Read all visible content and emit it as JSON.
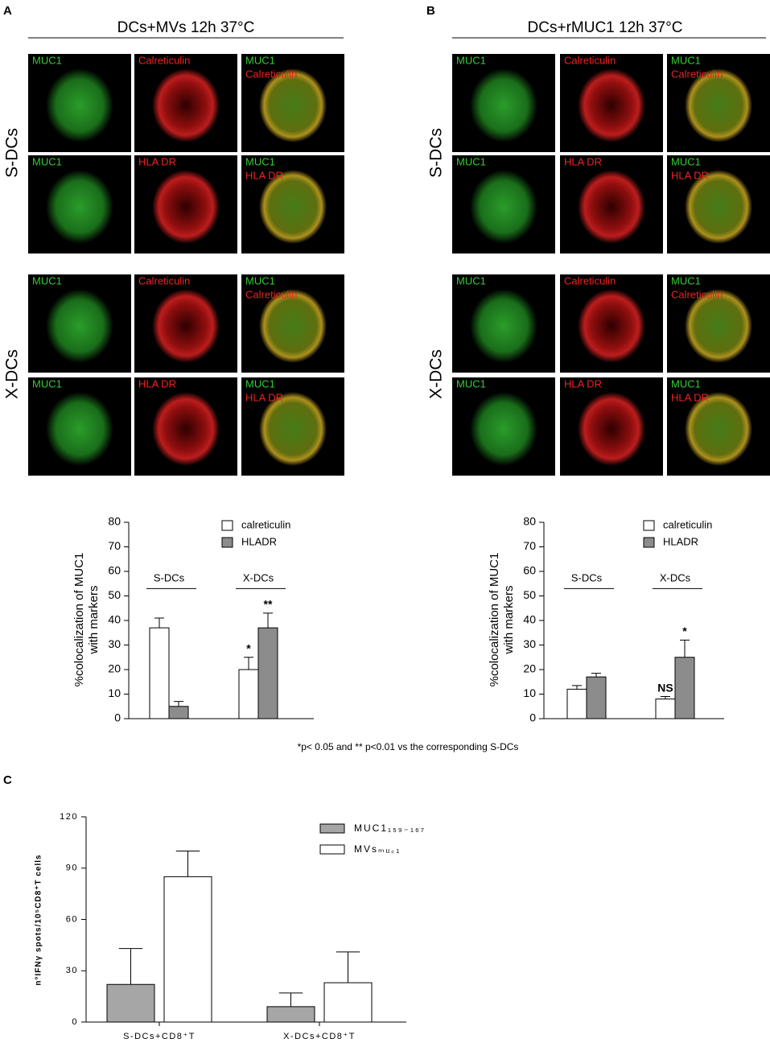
{
  "panels": [
    {
      "letter": "A",
      "title": "DCs+MVs 12h 37°C"
    },
    {
      "letter": "B",
      "title": "DCs+rMUC1 12h 37°C"
    }
  ],
  "row_groups": [
    "S-DCs",
    "X-DCs"
  ],
  "image_labels": {
    "muc1": "MUC1",
    "calreticulin": "Calreticulin",
    "hladr": "HLA DR"
  },
  "footnote": "*p< 0.05 and ** p<0.01 vs the corresponding S-DCs",
  "panel_c_letter": "C",
  "chart_data": [
    {
      "type": "bar",
      "y_label": [
        "%colocalization of MUC1",
        "with markers"
      ],
      "categories": [
        "S-DCs",
        "X-DCs"
      ],
      "series": [
        {
          "name": "calreticulin",
          "color": "#ffffff",
          "values": [
            37,
            20
          ],
          "errors": [
            4,
            5
          ],
          "annotations": [
            null,
            "*"
          ]
        },
        {
          "name": "HLADR",
          "color": "#8c8c8c",
          "values": [
            5,
            37
          ],
          "errors": [
            2,
            6
          ],
          "annotations": [
            null,
            "**"
          ]
        }
      ],
      "ylim": [
        0,
        80
      ],
      "yticks": [
        0,
        10,
        20,
        30,
        40,
        50,
        60,
        70,
        80
      ]
    },
    {
      "type": "bar",
      "y_label": [
        "%colocalization of MUC1",
        "with markers"
      ],
      "categories": [
        "S-DCs",
        "X-DCs"
      ],
      "series": [
        {
          "name": "calreticulin",
          "color": "#ffffff",
          "values": [
            12,
            8
          ],
          "errors": [
            1.5,
            1
          ],
          "annotations": [
            null,
            "NS"
          ]
        },
        {
          "name": "HLADR",
          "color": "#8c8c8c",
          "values": [
            17,
            25
          ],
          "errors": [
            1.5,
            7
          ],
          "annotations": [
            null,
            "*"
          ]
        }
      ],
      "ylim": [
        0,
        80
      ],
      "yticks": [
        0,
        10,
        20,
        30,
        40,
        50,
        60,
        70,
        80
      ]
    },
    {
      "type": "bar",
      "y_label": [
        "n°IFNγ spots/10⁵CD8⁺T cells"
      ],
      "categories": [
        "S-DCs+CD8⁺T",
        "X-DCs+CD8⁺T"
      ],
      "series": [
        {
          "name": "MUC1₁₅₉₋₁₆₇",
          "color": "#a6a6a6",
          "values": [
            22,
            9
          ],
          "errors": [
            21,
            8
          ]
        },
        {
          "name": "MVsₘᵤ꜀₁",
          "color": "#ffffff",
          "values": [
            85,
            23
          ],
          "errors": [
            15,
            18
          ]
        }
      ],
      "ylim": [
        0,
        120
      ],
      "yticks": [
        0,
        30,
        60,
        90,
        120
      ]
    }
  ]
}
